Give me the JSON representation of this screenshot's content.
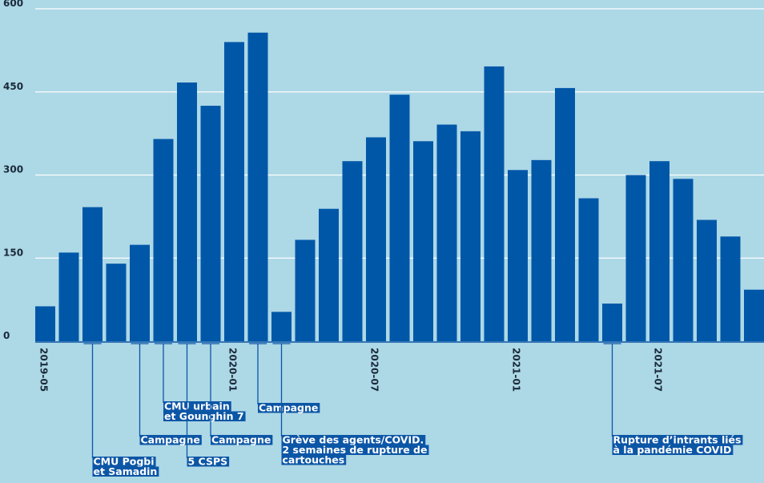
{
  "chart_data": {
    "type": "bar",
    "title": "",
    "xlabel": "",
    "ylabel": "",
    "ylim": [
      0,
      600
    ],
    "yticks": [
      0,
      150,
      300,
      450,
      600
    ],
    "categories": [
      "2019-05",
      "2019-06",
      "2019-07",
      "2019-08",
      "2019-09",
      "2019-10",
      "2019-11",
      "2019-12",
      "2020-01",
      "2020-02",
      "2020-03",
      "2020-04",
      "2020-05",
      "2020-06",
      "2020-07",
      "2020-08",
      "2020-09",
      "2020-10",
      "2020-11",
      "2020-12",
      "2021-01",
      "2021-02",
      "2021-03",
      "2021-04",
      "2021-05",
      "2021-06",
      "2021-07",
      "2021-08",
      "2021-09",
      "2021-10",
      "2021-11"
    ],
    "values": [
      63,
      160,
      242,
      140,
      174,
      365,
      467,
      425,
      540,
      557,
      53,
      183,
      239,
      325,
      368,
      445,
      361,
      391,
      379,
      496,
      309,
      327,
      457,
      258,
      68,
      300,
      325,
      293,
      219,
      189,
      93
    ],
    "xtick_labels": [
      {
        "category": "2019-05",
        "label": "2019-05"
      },
      {
        "category": "2020-01",
        "label": "2020-01"
      },
      {
        "category": "2020-07",
        "label": "2020-07"
      },
      {
        "category": "2021-01",
        "label": "2021-01"
      },
      {
        "category": "2021-07",
        "label": "2021-07"
      }
    ],
    "grid": true,
    "bar_color": "#0057a8",
    "background": "#add8e6",
    "annotations": [
      {
        "category": "2019-07",
        "lines": [
          "CMU Pogbi",
          "et Samadin"
        ]
      },
      {
        "category": "2019-09",
        "lines": [
          "Campagne"
        ]
      },
      {
        "category": "2019-10",
        "lines": [
          "CMU urbain",
          "et Gounghin 7"
        ]
      },
      {
        "category": "2019-11",
        "lines": [
          "5 CSPS"
        ]
      },
      {
        "category": "2019-12",
        "lines": [
          "Campagne"
        ]
      },
      {
        "category": "2020-02",
        "lines": [
          "Campagne"
        ]
      },
      {
        "category": "2020-03",
        "lines": [
          "Grève des agents/COVID.",
          "2 semaines de rupture de",
          "cartouches"
        ]
      },
      {
        "category": "2021-05",
        "lines": [
          "Rupture d’intrants liés",
          "à la pandémie COVID"
        ]
      }
    ]
  }
}
